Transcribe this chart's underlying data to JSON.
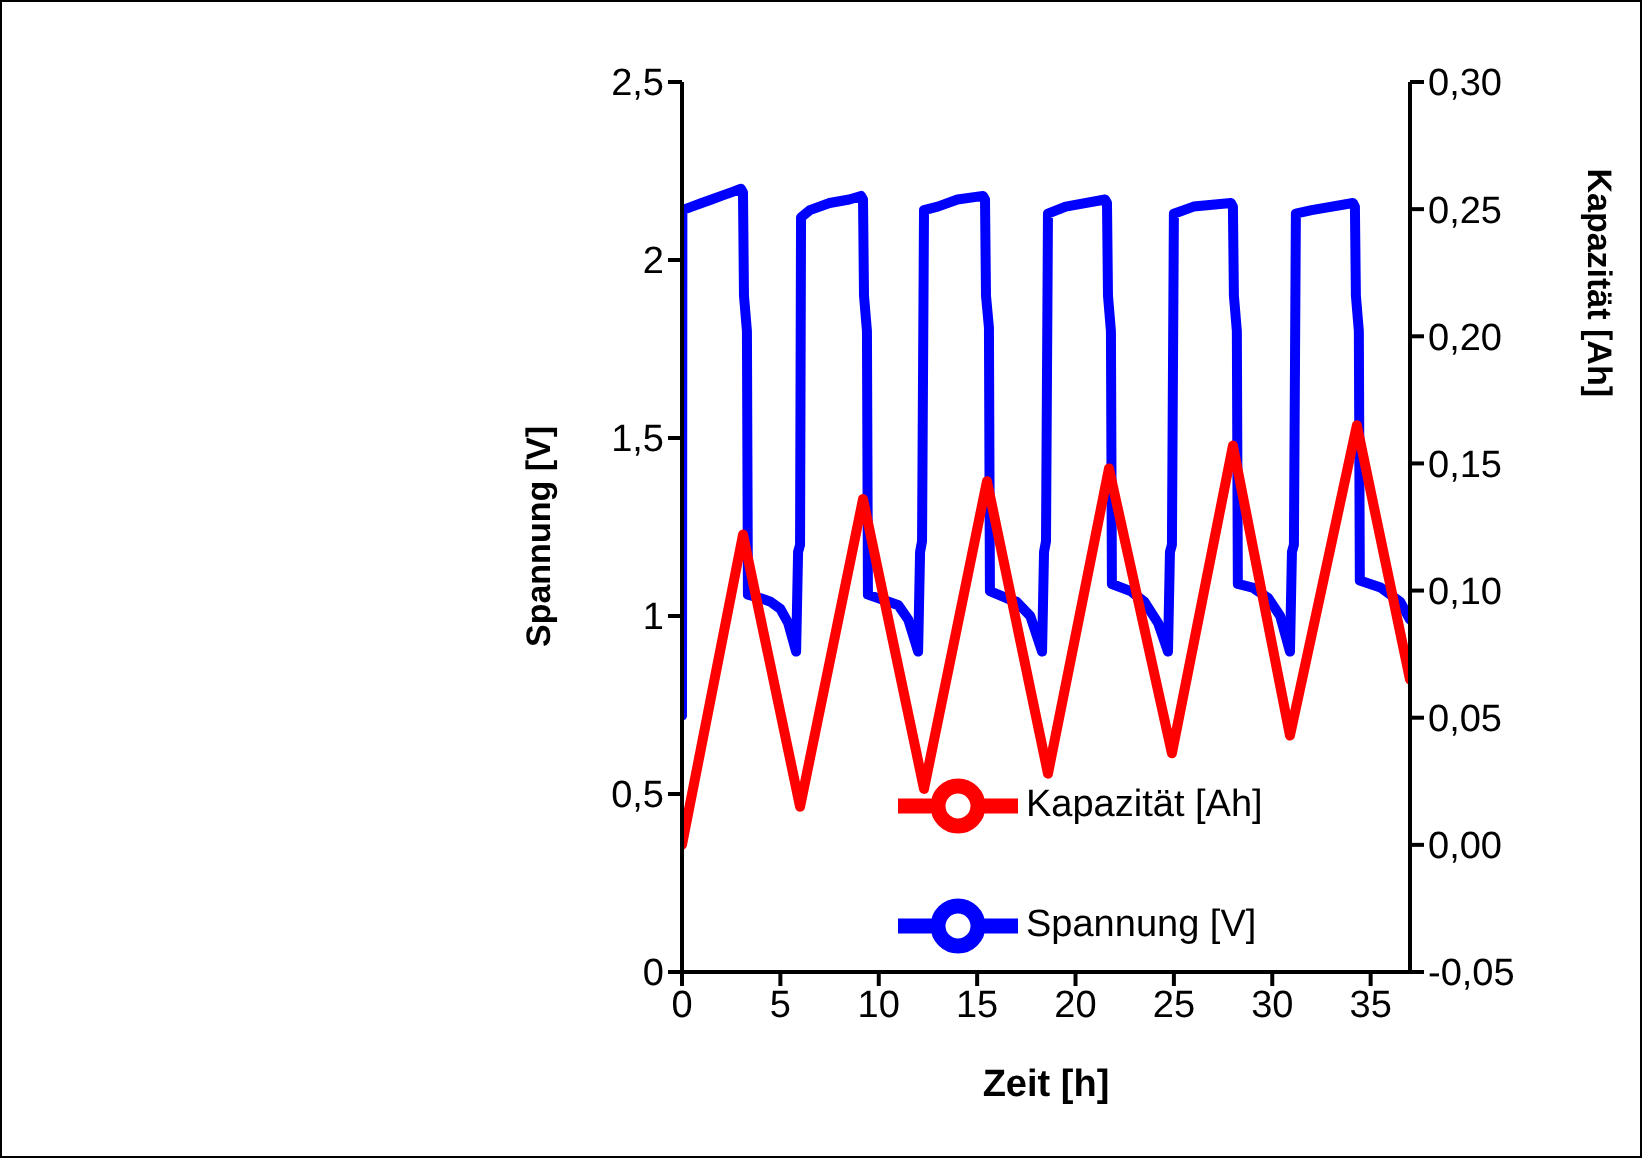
{
  "chart_data": {
    "type": "line",
    "xlabel": "Zeit [h]",
    "ylabel": "Spannung [V]",
    "y2label": "Kapazität [Ah]",
    "xlim": [
      0,
      37
    ],
    "xticks": [
      0,
      5,
      10,
      15,
      20,
      25,
      30,
      35
    ],
    "ylim": [
      0,
      2.5
    ],
    "yticks": [
      0,
      {
        "value": 0.5,
        "label": "0,5"
      },
      1,
      {
        "value": 1.5,
        "label": "1,5"
      },
      2,
      {
        "value": 2.5,
        "label": "2,5"
      }
    ],
    "y2lim": [
      -0.05,
      0.3
    ],
    "y2ticks": [
      {
        "value": -0.05,
        "label": "-0,05"
      },
      {
        "value": 0,
        "label": "0,00"
      },
      {
        "value": 0.05,
        "label": "0,05"
      },
      {
        "value": 0.1,
        "label": "0,10"
      },
      {
        "value": 0.15,
        "label": "0,15"
      },
      {
        "value": 0.2,
        "label": "0,20"
      },
      {
        "value": 0.25,
        "label": "0,25"
      },
      {
        "value": 0.3,
        "label": "0,30"
      }
    ],
    "grid": false,
    "legend": "bottom right",
    "series": [
      {
        "name": "Spannung [V]",
        "color": "#0000ff",
        "x": [
          0,
          0.02,
          0.5,
          1,
          1.5,
          2,
          2.5,
          3.0,
          3.1,
          3.15,
          3.3,
          3.35,
          4,
          4.5,
          5,
          5.4,
          5.8,
          5.9,
          6.0,
          6.05,
          6.5,
          7.5,
          8.5,
          9.1,
          9.2,
          9.25,
          9.4,
          9.45,
          10.5,
          11,
          11.5,
          12.0,
          12.1,
          12.2,
          12.3,
          13,
          14,
          15.3,
          15.4,
          15.45,
          15.6,
          15.65,
          16.5,
          17,
          17.7,
          18.3,
          18.4,
          18.5,
          18.6,
          19.5,
          21.5,
          21.6,
          21.65,
          21.8,
          21.85,
          22.8,
          23.5,
          24.2,
          24.7,
          24.8,
          24.9,
          25,
          26,
          27.9,
          28.0,
          28.05,
          28.2,
          28.25,
          29,
          29.8,
          30.4,
          30.9,
          31,
          31.1,
          31.2,
          32,
          34.1,
          34.2,
          34.25,
          34.4,
          34.45,
          35.5,
          36.5,
          37
        ],
        "values": [
          0.72,
          2.14,
          2.15,
          2.16,
          2.17,
          2.18,
          2.19,
          2.2,
          2.19,
          1.9,
          1.8,
          1.06,
          1.05,
          1.04,
          1.02,
          0.98,
          0.9,
          1.18,
          1.2,
          2.12,
          2.14,
          2.16,
          2.17,
          2.18,
          2.17,
          1.9,
          1.8,
          1.06,
          1.04,
          1.03,
          0.99,
          0.9,
          1.18,
          1.21,
          2.14,
          2.15,
          2.17,
          2.18,
          2.17,
          1.9,
          1.81,
          1.07,
          1.05,
          1.04,
          1.0,
          0.9,
          1.18,
          1.21,
          2.13,
          2.15,
          2.17,
          2.16,
          1.9,
          1.8,
          1.09,
          1.07,
          1.04,
          0.98,
          0.9,
          1.18,
          1.2,
          2.13,
          2.15,
          2.16,
          2.15,
          1.9,
          1.8,
          1.09,
          1.08,
          1.05,
          1.0,
          0.9,
          1.18,
          1.2,
          2.13,
          2.14,
          2.16,
          2.15,
          1.9,
          1.8,
          1.1,
          1.08,
          1.04,
          0.99
        ]
      },
      {
        "name": "Kapazität [Ah]",
        "color": "#ff0000",
        "axis": "y2",
        "x": [
          0,
          3.1,
          6.0,
          9.2,
          12.3,
          15.5,
          18.6,
          21.7,
          24.9,
          28.0,
          30.9,
          34.3,
          37
        ],
        "values": [
          0,
          0.122,
          0.015,
          0.136,
          0.022,
          0.143,
          0.028,
          0.148,
          0.036,
          0.157,
          0.043,
          0.165,
          0.065
        ]
      }
    ]
  }
}
